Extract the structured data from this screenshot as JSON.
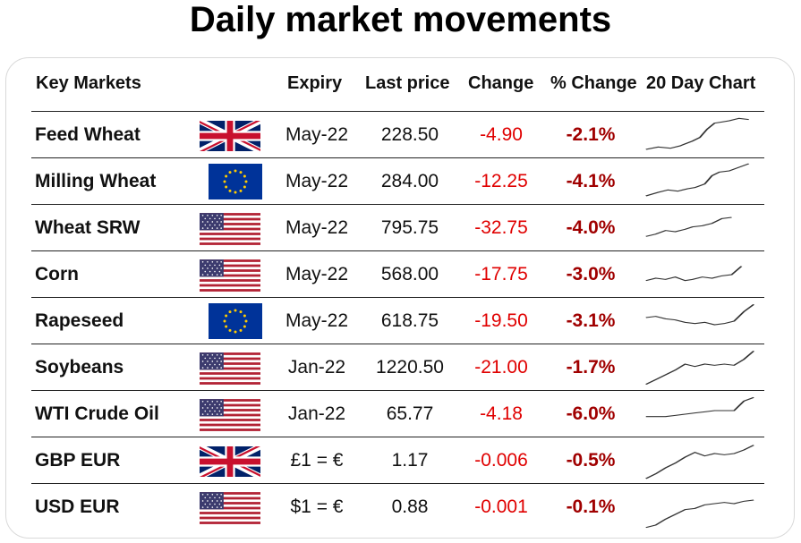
{
  "title": "Daily market movements",
  "headers": {
    "market": "Key Markets",
    "expiry": "Expiry",
    "last": "Last price",
    "change": "Change",
    "pct": "% Change",
    "chart": "20 Day Chart"
  },
  "colors": {
    "negative": "#e00000",
    "negative_pct": "#a00000"
  },
  "rows": [
    {
      "name": "Feed Wheat",
      "flag": "uk-flag-icon",
      "expiry": "May-22",
      "last": "228.50",
      "change": "-4.90",
      "pct": "-2.1%",
      "spark": [
        [
          2,
          60
        ],
        [
          12,
          56
        ],
        [
          22,
          58
        ],
        [
          30,
          54
        ],
        [
          40,
          46
        ],
        [
          46,
          40
        ],
        [
          52,
          26
        ],
        [
          58,
          16
        ],
        [
          64,
          14
        ],
        [
          70,
          12
        ],
        [
          78,
          8
        ],
        [
          86,
          10
        ]
      ]
    },
    {
      "name": "Milling Wheat",
      "flag": "eu-flag-icon",
      "expiry": "May-22",
      "last": "284.00",
      "change": "-12.25",
      "pct": "-4.1%",
      "spark": [
        [
          2,
          60
        ],
        [
          12,
          54
        ],
        [
          20,
          50
        ],
        [
          28,
          52
        ],
        [
          36,
          48
        ],
        [
          42,
          46
        ],
        [
          50,
          40
        ],
        [
          56,
          26
        ],
        [
          62,
          20
        ],
        [
          70,
          18
        ],
        [
          78,
          12
        ],
        [
          86,
          6
        ]
      ]
    },
    {
      "name": "Wheat SRW",
      "flag": "us-flag-icon",
      "expiry": "May-22",
      "last": "795.75",
      "change": "-32.75",
      "pct": "-4.0%",
      "spark": [
        [
          2,
          50
        ],
        [
          10,
          46
        ],
        [
          18,
          40
        ],
        [
          26,
          42
        ],
        [
          34,
          38
        ],
        [
          40,
          34
        ],
        [
          48,
          32
        ],
        [
          56,
          28
        ],
        [
          64,
          20
        ],
        [
          72,
          18
        ]
      ]
    },
    {
      "name": "Corn",
      "flag": "us-flag-icon",
      "expiry": "May-22",
      "last": "568.00",
      "change": "-17.75",
      "pct": "-3.0%",
      "spark": [
        [
          2,
          46
        ],
        [
          10,
          42
        ],
        [
          18,
          44
        ],
        [
          26,
          40
        ],
        [
          34,
          46
        ],
        [
          40,
          44
        ],
        [
          48,
          40
        ],
        [
          56,
          42
        ],
        [
          64,
          38
        ],
        [
          72,
          36
        ],
        [
          80,
          22
        ]
      ]
    },
    {
      "name": "Rapeseed",
      "flag": "eu-flag-icon",
      "expiry": "May-22",
      "last": "618.75",
      "change": "-19.50",
      "pct": "-3.1%",
      "spark": [
        [
          2,
          30
        ],
        [
          10,
          28
        ],
        [
          18,
          32
        ],
        [
          26,
          34
        ],
        [
          34,
          38
        ],
        [
          42,
          40
        ],
        [
          50,
          38
        ],
        [
          58,
          42
        ],
        [
          66,
          40
        ],
        [
          74,
          36
        ],
        [
          82,
          20
        ],
        [
          90,
          8
        ]
      ]
    },
    {
      "name": "Soybeans",
      "flag": "us-flag-icon",
      "expiry": "Jan-22",
      "last": "1220.50",
      "change": "-21.00",
      "pct": "-1.7%",
      "spark": [
        [
          2,
          64
        ],
        [
          10,
          56
        ],
        [
          18,
          48
        ],
        [
          26,
          40
        ],
        [
          34,
          30
        ],
        [
          42,
          34
        ],
        [
          50,
          30
        ],
        [
          58,
          32
        ],
        [
          66,
          30
        ],
        [
          74,
          32
        ],
        [
          82,
          22
        ],
        [
          90,
          8
        ]
      ]
    },
    {
      "name": "WTI Crude Oil",
      "flag": "us-flag-icon",
      "expiry": "Jan-22",
      "last": "65.77",
      "change": "-4.18",
      "pct": "-6.0%",
      "spark": [
        [
          2,
          40
        ],
        [
          10,
          40
        ],
        [
          18,
          40
        ],
        [
          26,
          38
        ],
        [
          34,
          36
        ],
        [
          42,
          34
        ],
        [
          50,
          32
        ],
        [
          58,
          30
        ],
        [
          66,
          30
        ],
        [
          74,
          30
        ],
        [
          82,
          14
        ],
        [
          90,
          8
        ]
      ]
    },
    {
      "name": "GBP EUR",
      "flag": "uk-flag-icon",
      "expiry": "£1 = €",
      "last": "1.17",
      "change": "-0.006",
      "pct": "-0.5%",
      "spark": [
        [
          2,
          66
        ],
        [
          10,
          58
        ],
        [
          18,
          48
        ],
        [
          26,
          40
        ],
        [
          34,
          30
        ],
        [
          42,
          22
        ],
        [
          50,
          28
        ],
        [
          58,
          24
        ],
        [
          66,
          26
        ],
        [
          74,
          24
        ],
        [
          82,
          18
        ],
        [
          90,
          10
        ]
      ]
    },
    {
      "name": "USD EUR",
      "flag": "us-flag-icon",
      "expiry": "$1 = €",
      "last": "0.88",
      "change": "-0.001",
      "pct": "-0.1%",
      "spark": [
        [
          2,
          70
        ],
        [
          10,
          66
        ],
        [
          18,
          56
        ],
        [
          26,
          48
        ],
        [
          34,
          40
        ],
        [
          42,
          38
        ],
        [
          50,
          32
        ],
        [
          58,
          30
        ],
        [
          66,
          28
        ],
        [
          74,
          30
        ],
        [
          82,
          26
        ],
        [
          90,
          24
        ]
      ]
    }
  ]
}
